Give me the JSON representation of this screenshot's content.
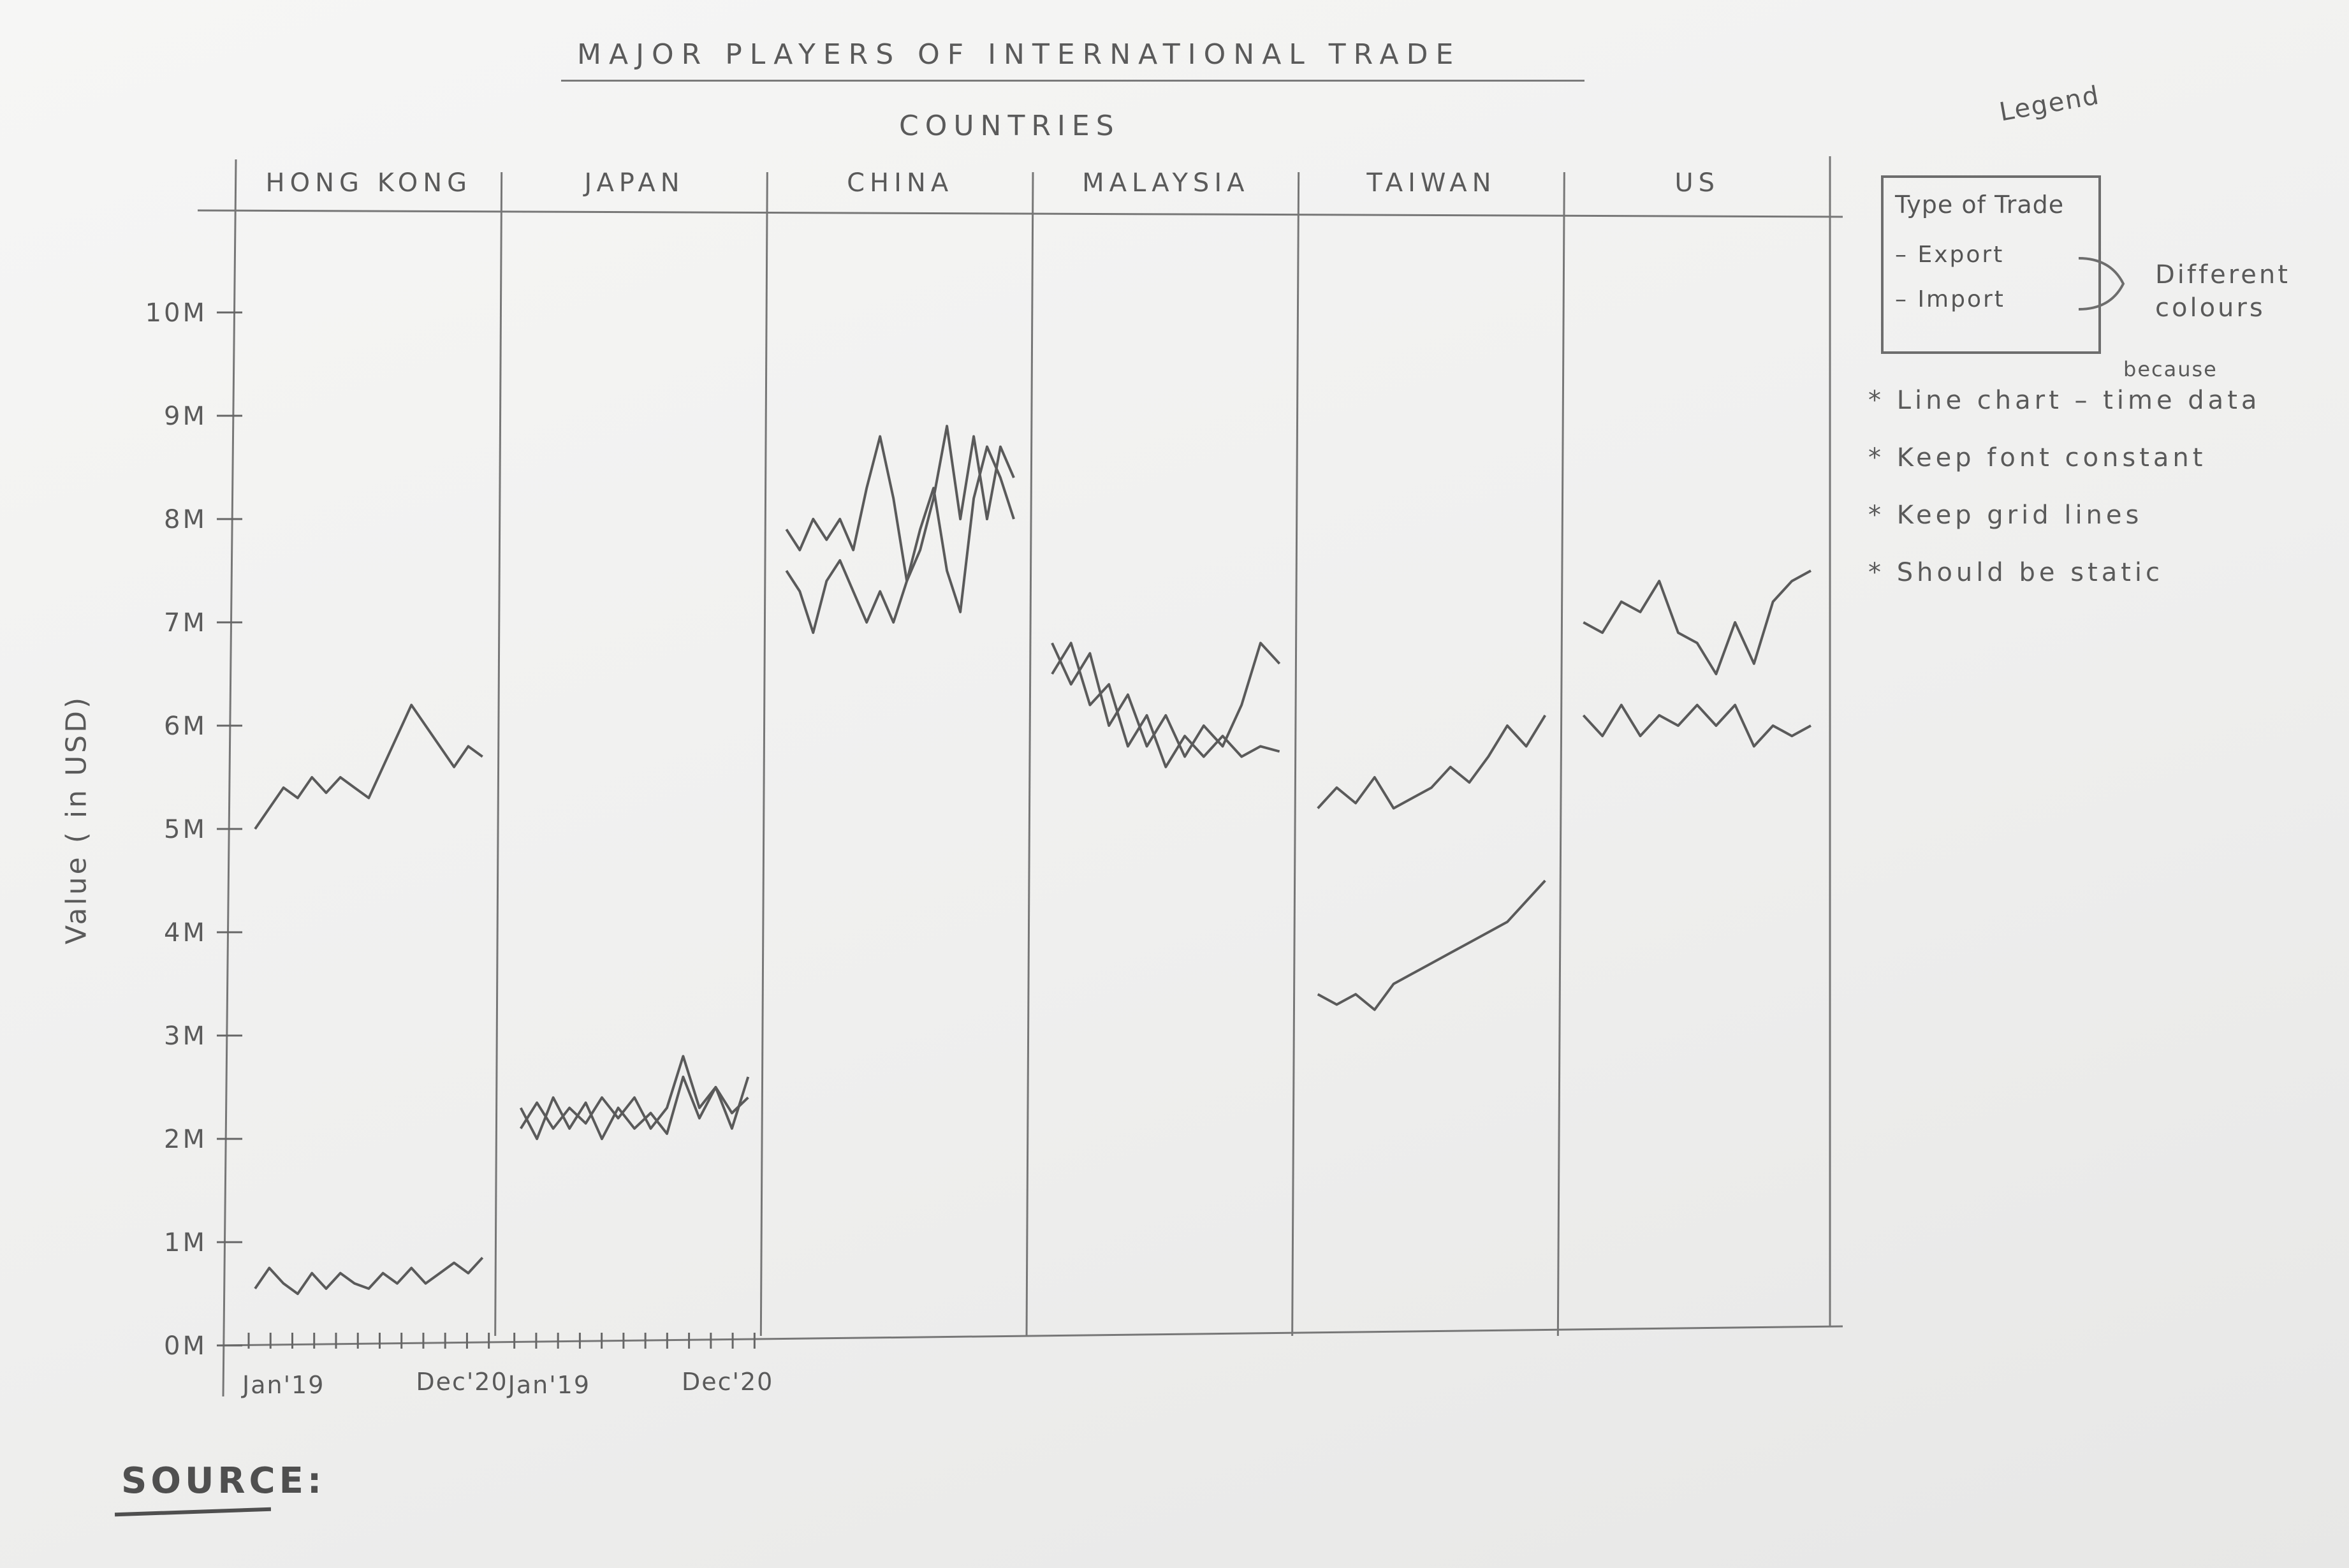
{
  "title": "MAJOR PLAYERS OF INTERNATIONAL TRADE",
  "subtitle": "COUNTRIES",
  "ylabel": "Value ( in USD)",
  "source_label": "SOURCE:",
  "legend": {
    "annotation": "Legend",
    "title": "Type of Trade",
    "items": [
      "– Export",
      "– Import"
    ],
    "note": "Different colours"
  },
  "notes": [
    "* Line chart – time data",
    "* Keep font constant",
    "* Keep grid lines",
    "* Should be static"
  ],
  "note_small": "because",
  "x_start_label": "Jan'19",
  "x_end_label": "Dec'20",
  "colors": {
    "ink": "#5a5a5a",
    "paper": "#f4f4f2"
  },
  "chart_data": {
    "type": "line",
    "title": "MAJOR PLAYERS OF INTERNATIONAL TRADE",
    "facet_label": "COUNTRIES",
    "ylabel": "Value ( in USD)",
    "ylim": [
      0,
      10
    ],
    "yticks": [
      "0M",
      "1M",
      "2M",
      "3M",
      "4M",
      "5M",
      "6M",
      "7M",
      "8M",
      "9M",
      "10M"
    ],
    "grid": true,
    "legend_position": "right",
    "x_range": [
      "Jan'19",
      "Dec'20"
    ],
    "panels": [
      {
        "country": "HONG KONG",
        "series": [
          {
            "values": [
              5.0,
              5.2,
              5.4,
              5.3,
              5.5,
              5.35,
              5.5,
              5.4,
              5.3,
              5.6,
              5.9,
              6.2,
              6.0,
              5.8,
              5.6,
              5.8,
              5.7
            ]
          },
          {
            "values": [
              0.55,
              0.75,
              0.6,
              0.5,
              0.7,
              0.55,
              0.7,
              0.6,
              0.55,
              0.7,
              0.6,
              0.75,
              0.6,
              0.7,
              0.8,
              0.7,
              0.85
            ]
          }
        ],
        "x_labels": [
          "Jan'19",
          "Dec'20"
        ]
      },
      {
        "country": "JAPAN",
        "series": [
          {
            "values": [
              2.3,
              2.0,
              2.4,
              2.1,
              2.35,
              2.0,
              2.3,
              2.1,
              2.25,
              2.05,
              2.6,
              2.2,
              2.5,
              2.1,
              2.6
            ]
          },
          {
            "values": [
              2.1,
              2.35,
              2.1,
              2.3,
              2.15,
              2.4,
              2.2,
              2.4,
              2.1,
              2.3,
              2.8,
              2.3,
              2.5,
              2.25,
              2.4
            ]
          }
        ],
        "x_labels": [
          "Jan'19",
          "Dec'20"
        ]
      },
      {
        "country": "CHINA",
        "series": [
          {
            "values": [
              7.9,
              7.7,
              8.0,
              7.8,
              8.0,
              7.7,
              8.3,
              8.8,
              8.2,
              7.4,
              7.7,
              8.2,
              8.9,
              8.0,
              8.8,
              8.0,
              8.7,
              8.4
            ]
          },
          {
            "values": [
              7.5,
              7.3,
              6.9,
              7.4,
              7.6,
              7.3,
              7.0,
              7.3,
              7.0,
              7.4,
              7.9,
              8.3,
              7.5,
              7.1,
              8.2,
              8.7,
              8.4,
              8.0
            ]
          }
        ],
        "x_labels": []
      },
      {
        "country": "MALAYSIA",
        "series": [
          {
            "values": [
              6.8,
              6.4,
              6.7,
              6.0,
              6.3,
              5.8,
              6.1,
              5.7,
              6.0,
              5.8,
              6.2,
              6.8,
              6.6
            ]
          },
          {
            "values": [
              6.5,
              6.8,
              6.2,
              6.4,
              5.8,
              6.1,
              5.6,
              5.9,
              5.7,
              5.9,
              5.7,
              5.8,
              5.75
            ]
          }
        ],
        "x_labels": []
      },
      {
        "country": "TAIWAN",
        "series": [
          {
            "values": [
              5.2,
              5.4,
              5.25,
              5.5,
              5.2,
              5.3,
              5.4,
              5.6,
              5.45,
              5.7,
              6.0,
              5.8,
              6.1
            ]
          },
          {
            "values": [
              3.4,
              3.3,
              3.4,
              3.25,
              3.5,
              3.6,
              3.7,
              3.8,
              3.9,
              4.0,
              4.1,
              4.3,
              4.5
            ]
          }
        ],
        "x_labels": []
      },
      {
        "country": "US",
        "series": [
          {
            "values": [
              7.0,
              6.9,
              7.2,
              7.1,
              7.4,
              6.9,
              6.8,
              6.5,
              7.0,
              6.6,
              7.2,
              7.4,
              7.5
            ]
          },
          {
            "values": [
              6.1,
              5.9,
              6.2,
              5.9,
              6.1,
              6.0,
              6.2,
              6.0,
              6.2,
              5.8,
              6.0,
              5.9,
              6.0
            ]
          }
        ],
        "x_labels": []
      }
    ]
  }
}
